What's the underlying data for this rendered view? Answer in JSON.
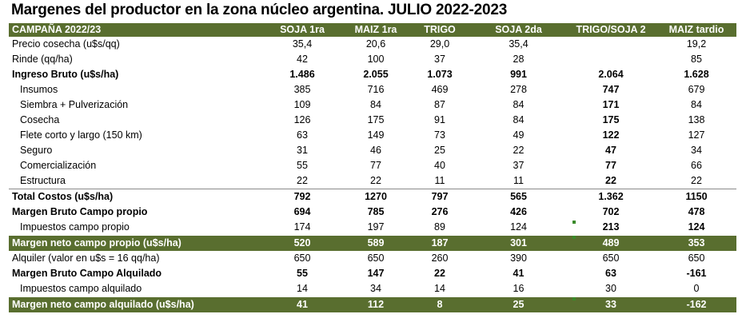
{
  "title": "Margenes del productor en la zona núcleo argentina. JULIO 2022-2023",
  "header": [
    "CAMPAÑA 2022/23",
    "SOJA 1ra",
    "MAIZ 1ra",
    "TRIGO",
    "SOJA 2da",
    "TRIGO/SOJA 2",
    "MAIZ tardio"
  ],
  "rows": [
    {
      "label": "Precio cosecha (u$s/qq)",
      "values": [
        "35,4",
        "20,6",
        "29,0",
        "35,4",
        "",
        "19,2"
      ]
    },
    {
      "label": "Rinde (qq/ha)",
      "values": [
        "42",
        "100",
        "37",
        "28",
        "",
        "85"
      ]
    },
    {
      "label": "Ingreso Bruto (u$s/ha)",
      "values": [
        "1.486",
        "2.055",
        "1.073",
        "991",
        "2.064",
        "1.628"
      ]
    },
    {
      "label": "Insumos",
      "values": [
        "385",
        "716",
        "469",
        "278",
        "747",
        "679"
      ]
    },
    {
      "label": "Siembra + Pulverización",
      "values": [
        "109",
        "84",
        "87",
        "84",
        "171",
        "84"
      ]
    },
    {
      "label": "Cosecha",
      "values": [
        "126",
        "175",
        "91",
        "84",
        "175",
        "138"
      ]
    },
    {
      "label": "Flete corto y largo (150 km)",
      "values": [
        "63",
        "149",
        "73",
        "49",
        "122",
        "127"
      ]
    },
    {
      "label": "Seguro",
      "values": [
        "31",
        "46",
        "25",
        "22",
        "47",
        "34"
      ]
    },
    {
      "label": "Comercialización",
      "values": [
        "55",
        "77",
        "40",
        "37",
        "77",
        "66"
      ]
    },
    {
      "label": "Estructura",
      "values": [
        "22",
        "22",
        "11",
        "11",
        "22",
        "22"
      ]
    },
    {
      "label": "Total Costos (u$s/ha)",
      "values": [
        "792",
        "1270",
        "797",
        "565",
        "1.362",
        "1150"
      ]
    },
    {
      "label": "Margen Bruto Campo propio",
      "values": [
        "694",
        "785",
        "276",
        "426",
        "702",
        "478"
      ]
    },
    {
      "label": "Impuestos  campo propio",
      "values": [
        "174",
        "197",
        "89",
        "124",
        "213",
        "124"
      ]
    },
    {
      "label": "Margen neto campo propio (u$s/ha)",
      "values": [
        "520",
        "589",
        "187",
        "301",
        "489",
        "353"
      ]
    },
    {
      "label": "Alquiler (valor en u$s = 16 qq/ha)",
      "values": [
        "650",
        "650",
        "260",
        "390",
        "650",
        "650"
      ]
    },
    {
      "label": "Margen Bruto Campo Alquilado",
      "values": [
        "55",
        "147",
        "22",
        "41",
        "63",
        "-161"
      ]
    },
    {
      "label": "Impuestos campo alquilado",
      "values": [
        "14",
        "34",
        "14",
        "16",
        "30",
        "0"
      ]
    },
    {
      "label": "Margen neto campo alquilado (u$s/ha)",
      "values": [
        "41",
        "112",
        "8",
        "25",
        "33",
        "-162"
      ]
    }
  ]
}
